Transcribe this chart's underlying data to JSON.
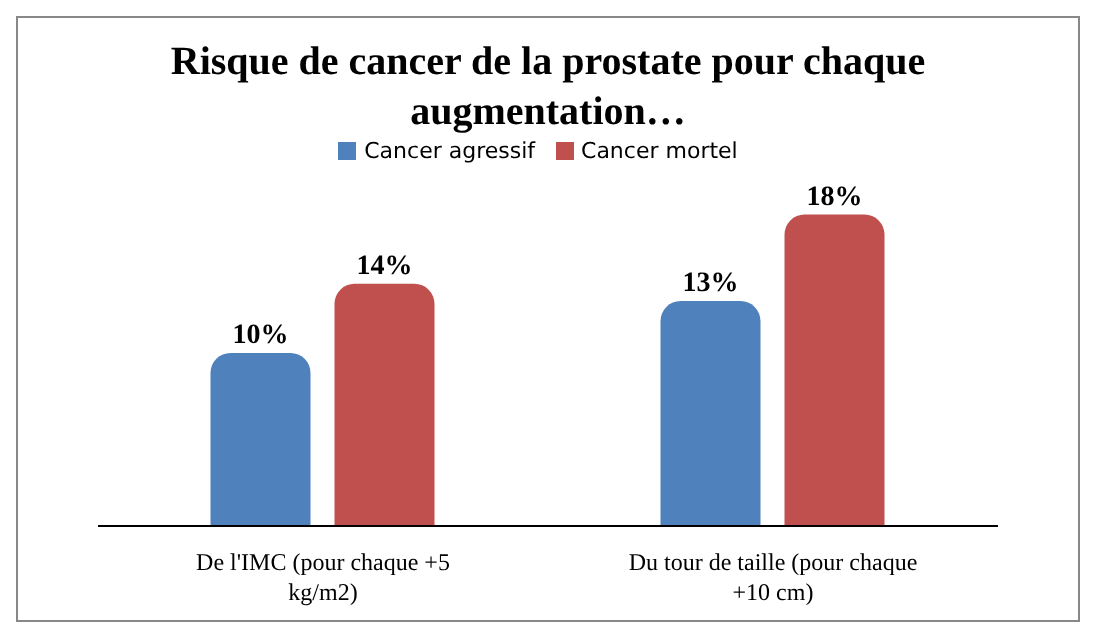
{
  "chart_data": {
    "type": "bar",
    "title": "Risque de cancer de la prostate pour chaque augmentation…",
    "categories": [
      "De l'IMC (pour chaque +5 kg/m2)",
      "Du tour de taille (pour chaque +10 cm)"
    ],
    "series": [
      {
        "name": "Cancer agressif",
        "color": "#4f81bd",
        "values": [
          10,
          13
        ],
        "value_labels": [
          "10%",
          "13%"
        ]
      },
      {
        "name": "Cancer mortel",
        "color": "#c0504d",
        "values": [
          14,
          18
        ],
        "value_labels": [
          "14%",
          "18%"
        ]
      }
    ],
    "legend": "top",
    "grid": false,
    "tick_labels": "x"
  }
}
